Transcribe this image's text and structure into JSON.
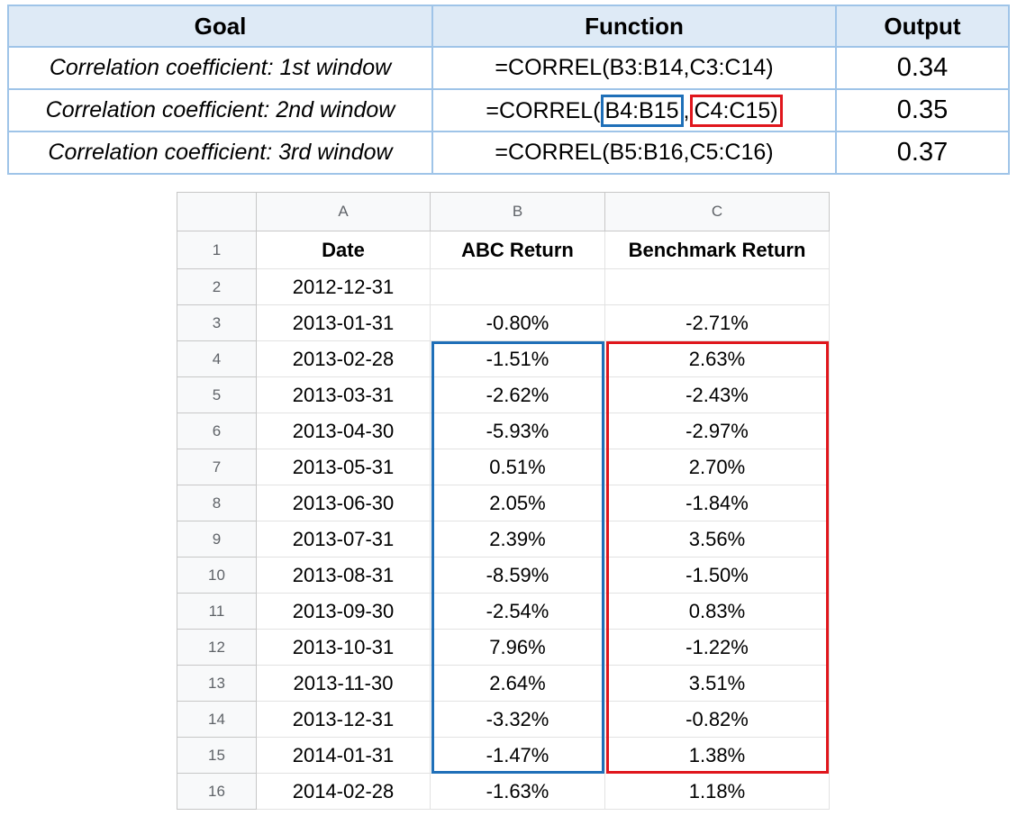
{
  "summary": {
    "headers": {
      "goal": "Goal",
      "function": "Function",
      "output": "Output"
    },
    "rows": [
      {
        "goal": "Correlation coefficient: 1st window",
        "function": "=CORREL(B3:B14,C3:C14)",
        "output": "0.34"
      },
      {
        "goal": "Correlation coefficient: 2nd window",
        "function_parts": {
          "prefix": "=CORREL(",
          "range_b": "B4:B15",
          "comma": ",",
          "range_c": "C4:C15",
          "suffix": ")"
        },
        "output": "0.35"
      },
      {
        "goal": "Correlation coefficient: 3rd window",
        "function": "=CORREL(B5:B16,C5:C16)",
        "output": "0.37"
      }
    ]
  },
  "sheet": {
    "columns": [
      "A",
      "B",
      "C"
    ],
    "header_row": {
      "num": "1",
      "a": "Date",
      "b": "ABC Return",
      "c": "Benchmark Return"
    },
    "rows": [
      {
        "num": "2",
        "a": "2012-12-31",
        "b": "",
        "c": ""
      },
      {
        "num": "3",
        "a": "2013-01-31",
        "b": "-0.80%",
        "c": "-2.71%"
      },
      {
        "num": "4",
        "a": "2013-02-28",
        "b": "-1.51%",
        "c": "2.63%"
      },
      {
        "num": "5",
        "a": "2013-03-31",
        "b": "-2.62%",
        "c": "-2.43%"
      },
      {
        "num": "6",
        "a": "2013-04-30",
        "b": "-5.93%",
        "c": "-2.97%"
      },
      {
        "num": "7",
        "a": "2013-05-31",
        "b": "0.51%",
        "c": "2.70%"
      },
      {
        "num": "8",
        "a": "2013-06-30",
        "b": "2.05%",
        "c": "-1.84%"
      },
      {
        "num": "9",
        "a": "2013-07-31",
        "b": "2.39%",
        "c": "3.56%"
      },
      {
        "num": "10",
        "a": "2013-08-31",
        "b": "-8.59%",
        "c": "-1.50%"
      },
      {
        "num": "11",
        "a": "2013-09-30",
        "b": "-2.54%",
        "c": "0.83%"
      },
      {
        "num": "12",
        "a": "2013-10-31",
        "b": "7.96%",
        "c": "-1.22%"
      },
      {
        "num": "13",
        "a": "2013-11-30",
        "b": "2.64%",
        "c": "3.51%"
      },
      {
        "num": "14",
        "a": "2013-12-31",
        "b": "-3.32%",
        "c": "-0.82%"
      },
      {
        "num": "15",
        "a": "2014-01-31",
        "b": "-1.47%",
        "c": "1.38%"
      },
      {
        "num": "16",
        "a": "2014-02-28",
        "b": "-1.63%",
        "c": "1.18%"
      }
    ]
  },
  "highlight_colors": {
    "abc_range": "#1f6fb8",
    "benchmark_range": "#e0161c"
  }
}
